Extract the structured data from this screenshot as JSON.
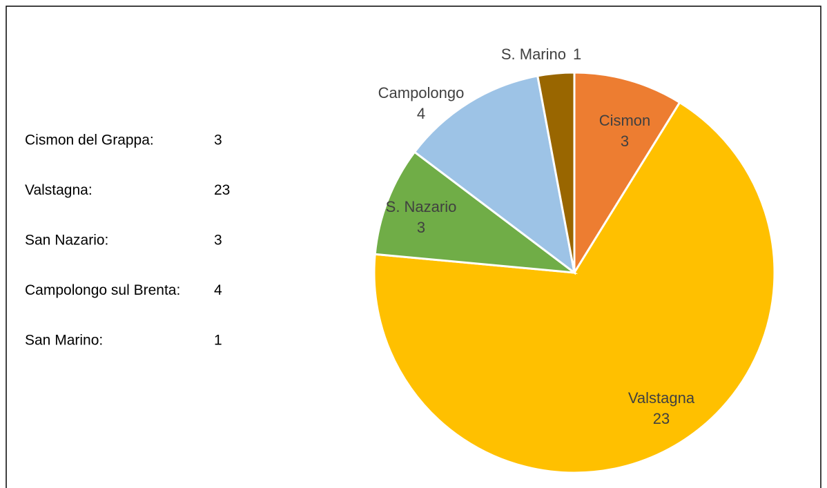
{
  "chart_data": {
    "type": "pie",
    "categories": [
      "Cismon",
      "Valstagna",
      "S. Nazario",
      "Campolongo",
      "S. Marino"
    ],
    "values": [
      3,
      23,
      3,
      4,
      1
    ],
    "colors": [
      "#ed7d31",
      "#ffc000",
      "#70ad47",
      "#9dc3e6",
      "#996600"
    ],
    "list_labels": [
      "Cismon del Grappa:",
      "Valstagna:",
      "San Nazario:",
      "Campolongo sul Brenta:",
      "San Marino:"
    ]
  }
}
